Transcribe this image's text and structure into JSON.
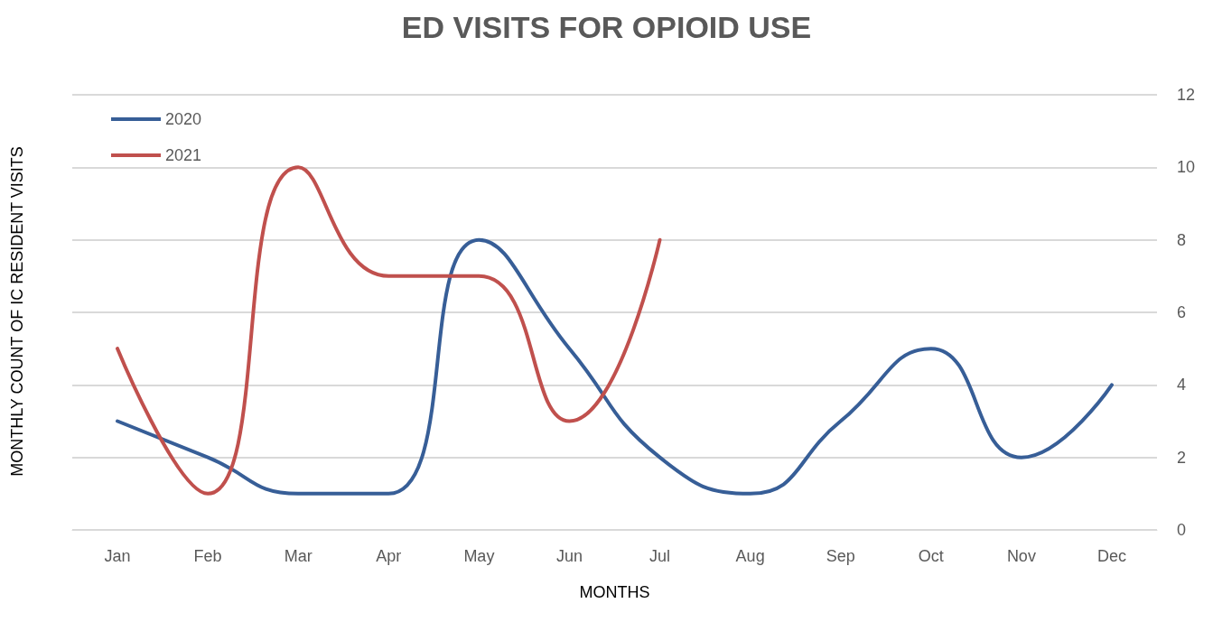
{
  "chart_data": {
    "type": "line",
    "title": "ED VISITS FOR OPIOID USE",
    "xlabel": "MONTHS",
    "ylabel": "MONTHLY COUNT OF IC RESIDENT VISITS",
    "categories": [
      "Jan",
      "Feb",
      "Mar",
      "Apr",
      "May",
      "Jun",
      "Jul",
      "Aug",
      "Sep",
      "Oct",
      "Nov",
      "Dec"
    ],
    "series": [
      {
        "name": "2020",
        "color": "#375e97",
        "values": [
          3,
          2,
          1,
          1,
          8,
          5,
          2,
          1,
          3,
          5,
          2,
          4
        ]
      },
      {
        "name": "2021",
        "color": "#c0504d",
        "values": [
          5,
          1,
          10,
          7,
          7,
          3,
          8,
          null,
          null,
          null,
          null,
          null
        ]
      }
    ],
    "ylim": [
      0,
      12
    ],
    "yticks": [
      0,
      2,
      4,
      6,
      8,
      10,
      12
    ],
    "grid": "y",
    "legend": "top left"
  }
}
